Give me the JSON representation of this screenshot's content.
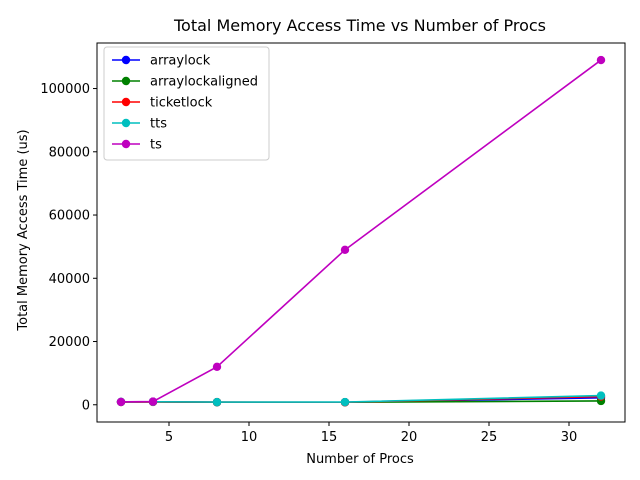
{
  "chart_data": {
    "type": "line",
    "title": "Total Memory Access Time vs Number of Procs",
    "xlabel": "Number of Procs",
    "ylabel": "Total Memory Access Time (us)",
    "x": [
      2,
      4,
      8,
      16,
      32
    ],
    "xlim": [
      0.5,
      33.5
    ],
    "ylim": [
      -5450,
      114400
    ],
    "xticks": [
      5,
      10,
      15,
      20,
      25,
      30
    ],
    "yticks": [
      0,
      20000,
      40000,
      60000,
      80000,
      100000
    ],
    "grid": false,
    "legend": "top-left",
    "series": [
      {
        "name": "arraylock",
        "color": "#0000ff",
        "values": [
          900,
          950,
          800,
          800,
          2200
        ]
      },
      {
        "name": "arraylockaligned",
        "color": "#008000",
        "values": [
          900,
          900,
          800,
          800,
          1200
        ]
      },
      {
        "name": "ticketlock",
        "color": "#ff0000",
        "values": [
          850,
          900,
          850,
          800,
          2600
        ]
      },
      {
        "name": "tts",
        "color": "#00bfbf",
        "values": [
          900,
          950,
          850,
          850,
          2900
        ]
      },
      {
        "name": "ts",
        "color": "#bf00bf",
        "values": [
          900,
          1000,
          12000,
          49000,
          109000
        ]
      }
    ]
  }
}
